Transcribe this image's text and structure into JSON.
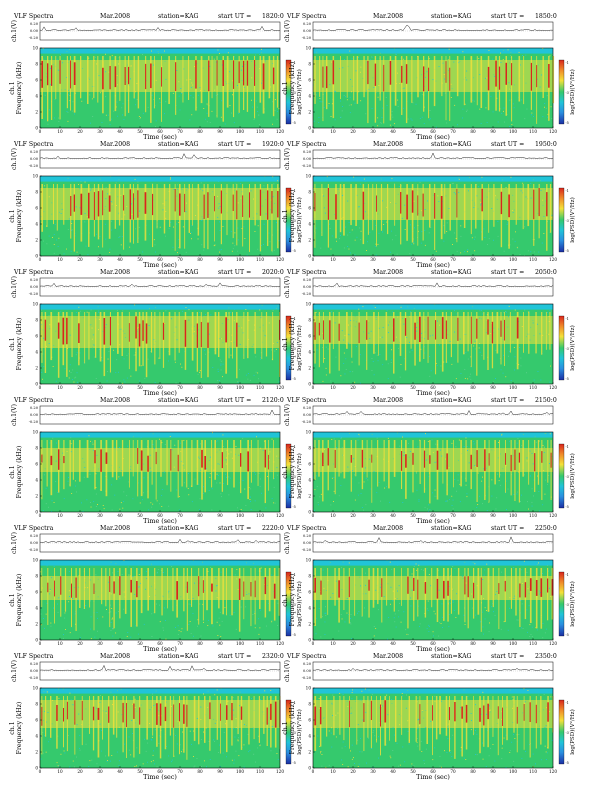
{
  "header": {
    "title": "VLF Spectra",
    "date": "Mar.2008",
    "station": "station=KAG",
    "start_prefix": "start UT ="
  },
  "axes": {
    "ch_label": "ch.1(V)",
    "freq_label": "Frequency (kHz)",
    "ch1_tag": "ch.1",
    "time_label": "Time (sec)",
    "colorbar_label": "log(PSD)(V²/Hz)",
    "ch_ticks": [
      "0.20",
      "0.00",
      "-0.20"
    ],
    "freq_ticks": [
      "10",
      "8",
      "6",
      "4",
      "2",
      "0"
    ],
    "colorbar_ticks": [
      "-1",
      "-3",
      "-5"
    ]
  },
  "colors": {
    "background_low": "#21c4d8",
    "mid": "#35c96d",
    "high": "#f4e13a",
    "peak": "#d8261c",
    "low_max": "#1b2ea3"
  },
  "chart_data": [
    {
      "type": "heatmap",
      "start_ut": "1820:0",
      "x_label": "Time (sec)",
      "y_label": "Frequency (kHz)",
      "xlim": [
        0,
        120
      ],
      "ylim": [
        0,
        10
      ],
      "x_ticks": [
        0,
        10,
        20,
        30,
        40,
        50,
        60,
        70,
        80,
        90,
        100,
        110,
        120
      ],
      "y_ticks": [
        0,
        2,
        4,
        6,
        8,
        10
      ],
      "band_khz": [
        4.5,
        8.5
      ]
    },
    {
      "type": "heatmap",
      "start_ut": "1850:0",
      "x_label": "Time (sec)",
      "y_label": "Frequency (kHz)",
      "xlim": [
        0,
        120
      ],
      "ylim": [
        0,
        10
      ],
      "x_ticks": [
        0,
        10,
        20,
        30,
        40,
        50,
        60,
        70,
        80,
        90,
        100,
        110,
        120
      ],
      "y_ticks": [
        0,
        2,
        4,
        6,
        8,
        10
      ],
      "band_khz": [
        4.5,
        8.5
      ]
    },
    {
      "type": "heatmap",
      "start_ut": "1920:0",
      "x_label": "Time (sec)",
      "y_label": "Frequency (kHz)",
      "xlim": [
        0,
        120
      ],
      "ylim": [
        0,
        10
      ],
      "x_ticks": [
        0,
        10,
        20,
        30,
        40,
        50,
        60,
        70,
        80,
        90,
        100,
        110,
        120
      ],
      "y_ticks": [
        0,
        2,
        4,
        6,
        8,
        10
      ],
      "band_khz": [
        4.5,
        8.5
      ]
    },
    {
      "type": "heatmap",
      "start_ut": "1950:0",
      "x_label": "Time (sec)",
      "y_label": "Frequency (kHz)",
      "xlim": [
        0,
        120
      ],
      "ylim": [
        0,
        10
      ],
      "x_ticks": [
        0,
        10,
        20,
        30,
        40,
        50,
        60,
        70,
        80,
        90,
        100,
        110,
        120
      ],
      "y_ticks": [
        0,
        2,
        4,
        6,
        8,
        10
      ],
      "band_khz": [
        4.5,
        8.5
      ]
    },
    {
      "type": "heatmap",
      "start_ut": "2020:0",
      "x_label": "Time (sec)",
      "y_label": "Frequency (kHz)",
      "xlim": [
        0,
        120
      ],
      "ylim": [
        0,
        10
      ],
      "x_ticks": [
        0,
        10,
        20,
        30,
        40,
        50,
        60,
        70,
        80,
        90,
        100,
        110,
        120
      ],
      "y_ticks": [
        0,
        2,
        4,
        6,
        8,
        10
      ],
      "band_khz": [
        4.5,
        8.5
      ]
    },
    {
      "type": "heatmap",
      "start_ut": "2050:0",
      "x_label": "Time (sec)",
      "y_label": "Frequency (kHz)",
      "xlim": [
        0,
        120
      ],
      "ylim": [
        0,
        10
      ],
      "x_ticks": [
        0,
        10,
        20,
        30,
        40,
        50,
        60,
        70,
        80,
        90,
        100,
        110,
        120
      ],
      "y_ticks": [
        0,
        2,
        4,
        6,
        8,
        10
      ],
      "band_khz": [
        5.0,
        8.5
      ]
    },
    {
      "type": "heatmap",
      "start_ut": "2120:0",
      "x_label": "Time (sec)",
      "y_label": "Frequency (kHz)",
      "xlim": [
        0,
        120
      ],
      "ylim": [
        0,
        10
      ],
      "x_ticks": [
        0,
        10,
        20,
        30,
        40,
        50,
        60,
        70,
        80,
        90,
        100,
        110,
        120
      ],
      "y_ticks": [
        0,
        2,
        4,
        6,
        8,
        10
      ],
      "band_khz": [
        5.0,
        8.0
      ]
    },
    {
      "type": "heatmap",
      "start_ut": "2150:0",
      "x_label": "Time (sec)",
      "y_label": "Frequency (kHz)",
      "xlim": [
        0,
        120
      ],
      "ylim": [
        0,
        10
      ],
      "x_ticks": [
        0,
        10,
        20,
        30,
        40,
        50,
        60,
        70,
        80,
        90,
        100,
        110,
        120
      ],
      "y_ticks": [
        0,
        2,
        4,
        6,
        8,
        10
      ],
      "band_khz": [
        5.0,
        8.0
      ]
    },
    {
      "type": "heatmap",
      "start_ut": "2220:0",
      "x_label": "Time (sec)",
      "y_label": "Frequency (kHz)",
      "xlim": [
        0,
        120
      ],
      "ylim": [
        0,
        10
      ],
      "x_ticks": [
        0,
        10,
        20,
        30,
        40,
        50,
        60,
        70,
        80,
        90,
        100,
        110,
        120
      ],
      "y_ticks": [
        0,
        2,
        4,
        6,
        8,
        10
      ],
      "band_khz": [
        5.0,
        8.0
      ]
    },
    {
      "type": "heatmap",
      "start_ut": "2250:0",
      "x_label": "Time (sec)",
      "y_label": "Frequency (kHz)",
      "xlim": [
        0,
        120
      ],
      "ylim": [
        0,
        10
      ],
      "x_ticks": [
        0,
        10,
        20,
        30,
        40,
        50,
        60,
        70,
        80,
        90,
        100,
        110,
        120
      ],
      "y_ticks": [
        0,
        2,
        4,
        6,
        8,
        10
      ],
      "band_khz": [
        5.0,
        8.0
      ]
    },
    {
      "type": "heatmap",
      "start_ut": "2320:0",
      "x_label": "Time (sec)",
      "y_label": "Frequency (kHz)",
      "xlim": [
        0,
        120
      ],
      "ylim": [
        0,
        10
      ],
      "x_ticks": [
        0,
        10,
        20,
        30,
        40,
        50,
        60,
        70,
        80,
        90,
        100,
        110,
        120
      ],
      "y_ticks": [
        0,
        2,
        4,
        6,
        8,
        10
      ],
      "band_khz": [
        5.0,
        8.5
      ]
    },
    {
      "type": "heatmap",
      "start_ut": "2350:0",
      "x_label": "Time (sec)",
      "y_label": "Frequency (kHz)",
      "xlim": [
        0,
        120
      ],
      "ylim": [
        0,
        10
      ],
      "x_ticks": [
        0,
        10,
        20,
        30,
        40,
        50,
        60,
        70,
        80,
        90,
        100,
        110,
        120
      ],
      "y_ticks": [
        0,
        2,
        4,
        6,
        8,
        10
      ],
      "band_khz": [
        5.0,
        8.5
      ]
    }
  ]
}
